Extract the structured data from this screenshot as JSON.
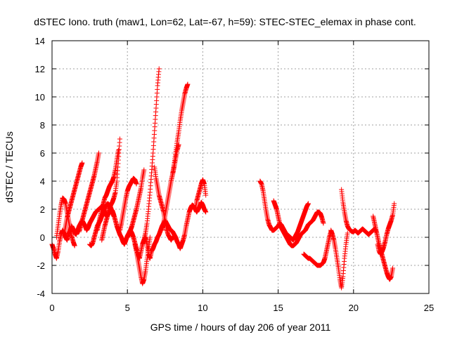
{
  "chart_data": {
    "type": "scatter",
    "title": "dSTEC Iono. truth (maw1, Lon=62, Lat=-67, h=59): STEC-STEC_elemax in phase cont.",
    "xlabel": "GPS time / hours of day 206 of year 2011",
    "ylabel": "dSTEC  / TECUs",
    "xlim": [
      0,
      25
    ],
    "ylim": [
      -4,
      14
    ],
    "xticks": [
      "0",
      "5",
      "10",
      "15",
      "20",
      "25"
    ],
    "yticks": [
      "-4",
      "-2",
      "0",
      "2",
      "4",
      "6",
      "8",
      "10",
      "12",
      "14"
    ],
    "grid": true,
    "marker": "+",
    "color": "#ff0000",
    "series": [
      {
        "x": [
          0.0,
          0.1,
          0.2,
          0.3,
          0.4,
          0.5,
          0.6,
          0.7,
          0.8,
          0.9,
          1.0,
          1.1,
          1.2,
          1.3,
          1.4,
          1.5,
          1.6,
          1.7,
          1.8,
          1.9,
          2.0,
          2.1,
          2.2,
          2.3,
          2.4,
          2.5,
          2.6,
          2.7,
          2.8,
          2.9,
          3.0,
          3.1,
          3.2,
          3.3,
          3.4,
          3.5,
          3.6,
          3.7,
          3.8,
          3.9,
          4.0,
          4.1,
          4.2,
          4.3,
          4.4,
          4.5,
          4.6,
          4.7,
          4.8,
          4.9,
          5.0,
          5.1,
          5.2,
          5.3,
          5.4,
          5.5,
          5.6,
          5.7,
          5.8,
          5.9,
          6.0,
          6.1,
          6.2,
          6.3,
          6.4,
          6.5,
          6.6,
          6.7,
          6.8,
          6.9,
          7.0,
          7.1,
          7.2,
          7.3,
          7.4,
          7.5,
          7.6,
          7.7,
          7.8,
          7.9,
          8.0,
          8.1,
          8.2,
          8.3,
          8.4,
          8.5,
          8.6,
          8.7,
          8.8,
          8.9,
          9.0,
          9.1,
          9.2,
          9.3,
          9.4,
          9.5,
          9.6,
          9.7,
          9.8,
          9.9,
          10.0,
          10.1,
          10.2
        ],
        "y": [
          -0.5,
          -0.8,
          -1.2,
          -1.5,
          -1.0,
          -0.3,
          0.2,
          0.5,
          0.3,
          0.0,
          -0.2,
          0.2,
          0.5,
          0.8,
          0.6,
          0.3,
          0.2,
          0.5,
          0.8,
          1.0,
          1.2,
          1.0,
          0.8,
          0.5,
          0.7,
          1.0,
          1.2,
          1.4,
          1.6,
          1.8,
          1.9,
          2.0,
          2.1,
          2.2,
          2.0,
          1.8,
          1.5,
          1.6,
          1.8,
          2.0,
          1.9,
          1.6,
          1.2,
          0.8,
          0.5,
          0.2,
          0.0,
          -0.3,
          -0.5,
          -0.2,
          0.1,
          0.3,
          0.5,
          0.3,
          0.0,
          -0.4,
          -0.8,
          -1.2,
          -1.5,
          -1.0,
          -0.5,
          -0.2,
          0.0,
          -0.5,
          -1.2,
          -1.5,
          -1.0,
          -0.8,
          -0.5,
          -0.3,
          0.0,
          0.2,
          0.5,
          0.8,
          1.0,
          1.2,
          1.0,
          0.8,
          0.6,
          0.5,
          0.4,
          0.2,
          0.0,
          -0.3,
          -0.5,
          -0.8,
          -0.5,
          -0.2,
          0.2,
          0.8,
          1.3,
          1.8,
          2.1,
          2.3,
          2.2,
          2.0,
          1.8,
          2.0,
          2.2,
          2.5,
          2.3,
          2.0,
          1.8
        ]
      },
      {
        "x": [
          0.3,
          0.4,
          0.5,
          0.6,
          0.7,
          0.8,
          0.9,
          1.0,
          1.1,
          1.2,
          1.3,
          1.4,
          1.5
        ],
        "y": [
          0.0,
          0.8,
          1.6,
          2.3,
          2.8,
          2.7,
          2.4,
          1.8,
          1.2,
          0.6,
          0.1,
          -0.3,
          -0.6
        ]
      },
      {
        "x": [
          0.8,
          0.9,
          1.0,
          1.1,
          1.2,
          1.3,
          1.4,
          1.5,
          1.6,
          1.7,
          1.8,
          1.9,
          2.0
        ],
        "y": [
          0.2,
          0.8,
          1.4,
          1.8,
          2.2,
          2.6,
          3.0,
          3.4,
          3.8,
          4.2,
          4.6,
          5.0,
          5.3
        ]
      },
      {
        "x": [
          1.8,
          1.9,
          2.0,
          2.1,
          2.2,
          2.3,
          2.4,
          2.5,
          2.6,
          2.7,
          2.8,
          2.9,
          3.0,
          3.1
        ],
        "y": [
          0.4,
          0.8,
          1.2,
          1.6,
          2.0,
          2.4,
          2.8,
          3.2,
          3.6,
          4.0,
          4.4,
          4.9,
          5.4,
          6.0
        ]
      },
      {
        "x": [
          2.5,
          2.6,
          2.7,
          2.8,
          2.9,
          3.0,
          3.1,
          3.2,
          3.3,
          3.4,
          3.5,
          3.6,
          3.7,
          3.8,
          3.9,
          4.0,
          4.1
        ],
        "y": [
          -0.5,
          -0.6,
          -0.4,
          0.0,
          0.4,
          0.8,
          1.0,
          1.2,
          1.5,
          1.8,
          2.1,
          2.3,
          2.4,
          2.3,
          2.1,
          1.8,
          1.5
        ]
      },
      {
        "x": [
          3.0,
          3.1,
          3.2,
          3.3,
          3.4,
          3.5,
          3.6,
          3.7,
          3.8,
          3.9,
          4.0,
          4.1,
          4.2,
          4.3,
          4.4
        ],
        "y": [
          0.5,
          1.0,
          1.5,
          2.0,
          2.4,
          2.8,
          3.0,
          3.3,
          3.6,
          3.8,
          4.0,
          4.3,
          4.8,
          5.5,
          6.2
        ]
      },
      {
        "x": [
          3.3,
          3.4,
          3.5,
          3.6,
          3.7,
          3.8,
          3.9,
          4.0,
          4.1,
          4.2,
          4.3,
          4.4,
          4.5
        ],
        "y": [
          -0.2,
          0.3,
          0.8,
          1.2,
          1.6,
          2.0,
          2.3,
          2.5,
          2.8,
          3.2,
          4.0,
          5.5,
          7.0
        ]
      },
      {
        "x": [
          4.5,
          4.6,
          4.7,
          4.8,
          4.9,
          5.0,
          5.1,
          5.2,
          5.3,
          5.4,
          5.5,
          5.6
        ],
        "y": [
          0.5,
          1.0,
          1.6,
          2.2,
          2.8,
          3.3,
          3.6,
          3.8,
          4.0,
          4.2,
          4.1,
          3.8
        ]
      },
      {
        "x": [
          5.0,
          5.1,
          5.2,
          5.3,
          5.4,
          5.5,
          5.6,
          5.7,
          5.8,
          5.9,
          6.0,
          6.1
        ],
        "y": [
          0.0,
          0.2,
          0.5,
          0.8,
          1.2,
          1.6,
          2.0,
          2.5,
          3.0,
          3.5,
          4.2,
          4.8
        ]
      },
      {
        "x": [
          5.5,
          5.6,
          5.7,
          5.8,
          5.9,
          6.0,
          6.1,
          6.2,
          6.3,
          6.4,
          6.5
        ],
        "y": [
          -0.5,
          -1.0,
          -1.6,
          -2.2,
          -2.8,
          -3.3,
          -3.0,
          -2.4,
          -1.6,
          -0.8,
          0.0
        ]
      },
      {
        "x": [
          6.0,
          6.1,
          6.2,
          6.3,
          6.4,
          6.5,
          6.6,
          6.7,
          6.8,
          6.9,
          7.0,
          7.1
        ],
        "y": [
          -0.5,
          -0.2,
          0.3,
          1.0,
          2.0,
          3.2,
          4.6,
          6.0,
          7.6,
          9.2,
          10.8,
          12.0
        ]
      },
      {
        "x": [
          6.8,
          6.9,
          7.0,
          7.1,
          7.2,
          7.3,
          7.4,
          7.5,
          7.6,
          7.7,
          7.8,
          7.9,
          8.0
        ],
        "y": [
          5.0,
          4.2,
          3.6,
          3.0,
          2.6,
          2.2,
          1.8,
          1.2,
          0.6,
          0.2,
          0.0,
          -0.2,
          0.0
        ]
      },
      {
        "x": [
          7.3,
          7.4,
          7.5,
          7.6,
          7.7,
          7.8,
          7.9,
          8.0,
          8.1,
          8.2,
          8.3,
          8.4
        ],
        "y": [
          0.5,
          1.0,
          1.6,
          2.2,
          2.8,
          3.4,
          4.0,
          4.5,
          5.0,
          5.6,
          6.2,
          6.6
        ]
      },
      {
        "x": [
          8.0,
          8.1,
          8.2,
          8.3,
          8.4,
          8.5,
          8.6,
          8.7,
          8.8,
          8.9,
          9.0
        ],
        "y": [
          4.5,
          5.2,
          6.0,
          6.8,
          7.5,
          8.3,
          9.0,
          9.6,
          10.2,
          10.6,
          10.9
        ]
      },
      {
        "x": [
          9.5,
          9.6,
          9.7,
          9.8,
          9.9,
          10.0,
          10.1,
          10.2
        ],
        "y": [
          2.0,
          2.6,
          3.0,
          3.4,
          3.8,
          4.1,
          3.8,
          3.0
        ]
      },
      {
        "x": [
          13.8,
          13.9,
          14.0,
          14.1,
          14.2,
          14.3,
          14.4,
          14.5,
          14.6,
          14.7,
          14.8,
          14.9,
          15.0,
          15.1,
          15.2,
          15.3,
          15.4,
          15.5,
          15.6,
          15.7,
          15.8,
          15.9,
          16.0,
          16.1,
          16.2,
          16.3,
          16.4,
          16.5,
          16.6,
          16.7,
          16.8,
          16.9,
          17.0
        ],
        "y": [
          4.0,
          3.8,
          3.3,
          2.6,
          1.9,
          1.3,
          0.9,
          0.7,
          0.5,
          0.5,
          0.6,
          0.7,
          0.8,
          1.0,
          0.9,
          0.7,
          0.5,
          0.3,
          0.2,
          0.1,
          0.0,
          -0.1,
          -0.2,
          0.0,
          0.2,
          0.4,
          0.7,
          1.0,
          1.3,
          1.6,
          1.9,
          2.2,
          2.4
        ]
      },
      {
        "x": [
          14.7,
          14.8,
          14.9,
          15.0,
          15.1,
          15.2,
          15.3,
          15.4,
          15.5,
          15.6,
          15.7,
          15.8,
          15.9,
          16.0,
          16.1,
          16.2,
          16.3,
          16.4,
          16.5,
          16.6,
          16.7,
          16.8,
          16.9,
          17.0,
          17.1,
          17.2,
          17.3,
          17.4,
          17.5,
          17.6,
          17.7,
          17.8,
          17.9,
          18.0
        ],
        "y": [
          2.6,
          2.3,
          2.0,
          1.5,
          1.0,
          0.7,
          0.5,
          0.3,
          0.1,
          -0.1,
          -0.3,
          -0.5,
          -0.6,
          -0.6,
          -0.5,
          -0.4,
          -0.2,
          0.0,
          0.2,
          0.3,
          0.4,
          0.5,
          0.7,
          0.9,
          1.0,
          1.1,
          1.2,
          1.4,
          1.6,
          1.8,
          1.8,
          1.7,
          1.4,
          1.0
        ]
      },
      {
        "x": [
          16.7,
          16.8,
          16.9,
          17.0,
          17.1,
          17.2,
          17.3,
          17.4,
          17.5,
          17.6,
          17.7,
          17.8,
          17.9,
          18.0,
          18.1,
          18.2,
          18.3,
          18.4,
          18.5
        ],
        "y": [
          -1.2,
          -1.3,
          -1.4,
          -1.5,
          -1.5,
          -1.6,
          -1.7,
          -1.8,
          -1.9,
          -2.0,
          -2.0,
          -2.0,
          -1.9,
          -1.8,
          -1.5,
          -1.0,
          -0.5,
          0.0,
          0.4
        ]
      },
      {
        "x": [
          18.5,
          18.6,
          18.7,
          18.8,
          18.9,
          19.0,
          19.1,
          19.2,
          19.3,
          19.4,
          19.5,
          19.6
        ],
        "y": [
          0.5,
          0.2,
          -0.2,
          -0.8,
          -1.5,
          -2.2,
          -3.0,
          -3.6,
          -2.8,
          -1.5,
          -0.5,
          0.3
        ]
      },
      {
        "x": [
          19.2,
          19.3,
          19.4,
          19.5,
          19.6,
          19.7,
          19.8,
          19.9,
          20.0,
          20.1,
          20.2,
          20.3,
          20.4,
          20.5,
          20.6,
          20.7,
          20.8,
          20.9,
          21.0,
          21.1,
          21.2,
          21.3,
          21.4,
          21.5
        ],
        "y": [
          3.4,
          2.5,
          1.8,
          1.2,
          0.8,
          0.6,
          0.5,
          0.4,
          0.4,
          0.5,
          0.4,
          0.3,
          0.4,
          0.5,
          0.6,
          0.5,
          0.4,
          0.3,
          0.2,
          0.3,
          0.4,
          0.5,
          0.6,
          0.4
        ]
      },
      {
        "x": [
          21.3,
          21.4,
          21.5,
          21.6,
          21.7,
          21.8,
          21.9,
          22.0,
          22.1,
          22.2,
          22.3,
          22.4,
          22.5,
          22.6
        ],
        "y": [
          1.5,
          1.0,
          0.5,
          0.0,
          -0.5,
          -0.9,
          -1.3,
          -1.7,
          -2.1,
          -2.5,
          -2.8,
          -3.0,
          -2.8,
          -2.2
        ]
      },
      {
        "x": [
          21.6,
          21.7,
          21.8,
          21.9,
          22.0,
          22.1,
          22.2,
          22.3,
          22.4,
          22.5,
          22.6,
          22.7
        ],
        "y": [
          -0.5,
          -1.0,
          -1.2,
          -1.0,
          -0.7,
          -0.3,
          0.2,
          0.6,
          0.9,
          1.2,
          1.6,
          2.4
        ]
      }
    ]
  }
}
